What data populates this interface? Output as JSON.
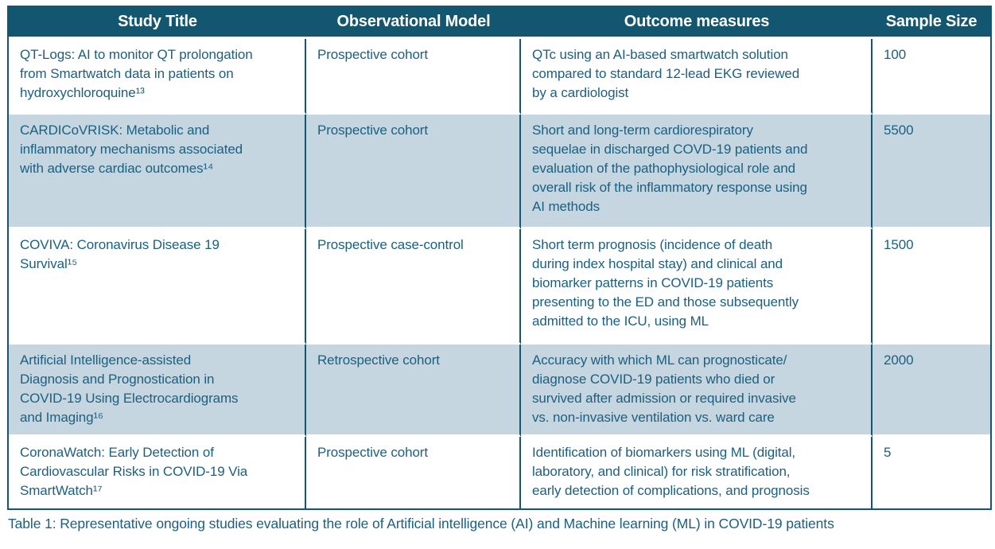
{
  "colors": {
    "header_bg": "#135670",
    "border": "#135670",
    "row_alt_bg": "#c6d6e0",
    "text": "#1b6080"
  },
  "table": {
    "columns": {
      "study_title": "Study Title",
      "observational_model": "Observational Model",
      "outcome_measures": "Outcome measures",
      "sample_size": "Sample Size"
    },
    "rows": [
      {
        "title": "QT-Logs: AI to monitor QT prolongation\nfrom Smartwatch data in patients on\nhydroxychloroquine¹³",
        "model": "Prospective cohort",
        "outcome": "QTc using an AI-based smartwatch solution\ncompared to standard 12-lead EKG reviewed\nby a cardiologist",
        "sample": "100"
      },
      {
        "title": "CARDICoVRISK: Metabolic and\ninflammatory mechanisms associated\nwith adverse cardiac outcomes¹⁴",
        "model": "Prospective cohort",
        "outcome": "Short and long-term cardiorespiratory\nsequelae in discharged COVD-19 patients and\nevaluation of the pathophysiological role and\noverall risk of the inflammatory response using\nAI methods",
        "sample": "5500"
      },
      {
        "title": "COVIVA: Coronavirus Disease 19\nSurvival¹⁵",
        "model": "Prospective case-control",
        "outcome": "Short term prognosis (incidence of death\nduring index hospital stay) and clinical and\nbiomarker patterns in COVID-19 patients\npresenting to the ED and those subsequently\nadmitted to the ICU, using ML",
        "sample": "1500"
      },
      {
        "title": "Artificial Intelligence-assisted\nDiagnosis and Prognostication in\nCOVID-19 Using Electrocardiograms\nand Imaging¹⁶",
        "model": "Retrospective cohort",
        "outcome": "Accuracy with which ML can prognosticate/\ndiagnose COVID-19 patients who died or\nsurvived after admission or required invasive\nvs. non-invasive ventilation vs. ward care",
        "sample": "2000"
      },
      {
        "title": "CoronaWatch:  Early Detection of\nCardiovascular Risks in COVID-19 Via\nSmartWatch¹⁷",
        "model": "Prospective cohort",
        "outcome": "Identification of biomarkers using ML (digital,\nlaboratory, and clinical) for risk stratification,\nearly detection of complications, and prognosis",
        "sample": "5"
      }
    ]
  },
  "caption": "Table 1: Representative ongoing studies evaluating the role of Artificial intelligence (AI) and Machine learning (ML) in COVID-19 patients"
}
